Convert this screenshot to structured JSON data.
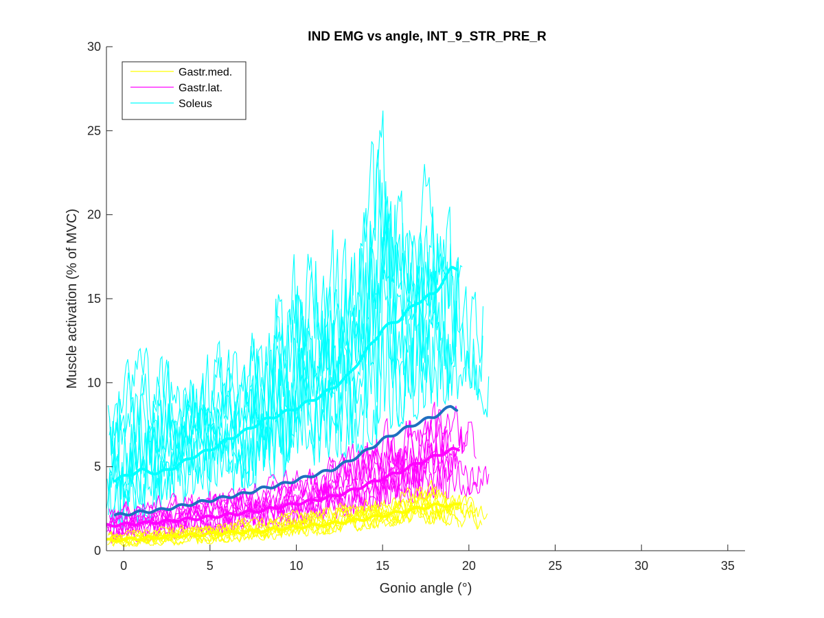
{
  "chart_data": {
    "type": "line",
    "title": "IND EMG vs angle, INT_9_STR_PRE_R",
    "xlabel": "Gonio angle (°)",
    "ylabel": "Muscle activation (% of MVC)",
    "xlim": [
      -1,
      36
    ],
    "ylim": [
      0,
      30
    ],
    "x_ticks": [
      0,
      5,
      10,
      15,
      20,
      25,
      30,
      35
    ],
    "y_ticks": [
      0,
      5,
      10,
      15,
      20,
      25,
      30
    ],
    "grid": false,
    "legend_position": "top-left",
    "colors": {
      "gastr_med": "#ffff00",
      "gastr_lat": "#ff00ff",
      "soleus": "#00ffff",
      "overall_mean": "#1f6fbf",
      "axis": "#262626"
    },
    "series": [
      {
        "name": "Gastr.med.",
        "color": "#ffff00",
        "x_range": [
          -1,
          21.3
        ],
        "mean": {
          "x": [
            -1,
            2,
            5,
            8,
            10,
            12,
            14,
            15,
            16,
            17,
            18,
            19.4
          ],
          "y": [
            0.6,
            0.8,
            1.0,
            1.2,
            1.4,
            1.6,
            1.9,
            2.1,
            2.3,
            2.5,
            2.7,
            2.7
          ]
        },
        "trial_envelope": {
          "x": [
            -1,
            2,
            5,
            8,
            10,
            12,
            14,
            16,
            18,
            20,
            21.3
          ],
          "low": [
            0.2,
            0.3,
            0.4,
            0.6,
            0.8,
            1.0,
            1.2,
            1.5,
            1.6,
            1.3,
            1.0
          ],
          "high": [
            1.3,
            1.5,
            1.8,
            2.1,
            2.5,
            2.9,
            3.3,
            3.6,
            4.3,
            3.6,
            3.0
          ]
        }
      },
      {
        "name": "Gastr.lat.",
        "color": "#ff00ff",
        "x_range": [
          -1,
          21.3
        ],
        "mean": {
          "x": [
            -1,
            2,
            5,
            8,
            10,
            12,
            13,
            14,
            15,
            16,
            17,
            18,
            19,
            19.4
          ],
          "y": [
            1.5,
            1.7,
            2.0,
            2.4,
            2.8,
            3.2,
            3.5,
            3.9,
            4.3,
            4.7,
            5.2,
            5.6,
            6.0,
            6.0
          ]
        },
        "trial_envelope": {
          "x": [
            -1,
            2,
            5,
            8,
            10,
            12,
            14,
            16,
            18,
            20,
            21.3
          ],
          "low": [
            0.4,
            0.6,
            0.9,
            1.2,
            1.5,
            1.8,
            2.2,
            2.6,
            3.0,
            3.2,
            3.5
          ],
          "high": [
            2.8,
            3.3,
            3.8,
            4.4,
            5.0,
            5.8,
            7.0,
            8.5,
            9.3,
            9.0,
            6.5
          ]
        }
      },
      {
        "name": "Soleus",
        "color": "#00ffff",
        "x_range": [
          -1,
          21.3
        ],
        "mean": {
          "x": [
            -0.5,
            1,
            2,
            3,
            4,
            5,
            6,
            7,
            8,
            9,
            10,
            11,
            12,
            13,
            14,
            15,
            16,
            17,
            18,
            19,
            19.4
          ],
          "y": [
            4.2,
            4.8,
            4.6,
            5.0,
            5.6,
            6.0,
            6.6,
            7.1,
            7.7,
            8.1,
            8.5,
            9.0,
            9.6,
            10.4,
            11.8,
            13.2,
            13.8,
            14.8,
            15.3,
            16.8,
            16.8
          ]
        },
        "trial_envelope": {
          "x": [
            -1,
            1,
            3,
            5,
            7,
            9,
            11,
            13,
            14.9,
            16,
            17,
            18,
            19,
            20,
            21.3
          ],
          "low": [
            0.5,
            1.5,
            2.2,
            2.8,
            3.4,
            4.0,
            4.8,
            5.5,
            6.2,
            7.0,
            7.5,
            8.0,
            8.5,
            9.0,
            7.5
          ],
          "high": [
            10.5,
            12.5,
            12.0,
            12.5,
            13.0,
            18.0,
            19.0,
            20.0,
            29.0,
            22.0,
            22.5,
            24.0,
            24.2,
            19.5,
            19.8
          ]
        }
      },
      {
        "color": "#1f6fbf",
        "mean": {
          "x": [
            -0.5,
            1,
            2,
            3,
            4,
            5,
            6,
            7,
            8,
            9,
            10,
            11,
            12,
            13,
            14,
            15,
            16,
            17,
            18,
            19,
            19.4
          ],
          "y": [
            2.1,
            2.3,
            2.4,
            2.6,
            2.8,
            3.0,
            3.2,
            3.4,
            3.7,
            3.9,
            4.2,
            4.5,
            4.8,
            5.3,
            5.9,
            6.6,
            7.1,
            7.6,
            8.0,
            8.6,
            8.4
          ]
        }
      }
    ]
  }
}
